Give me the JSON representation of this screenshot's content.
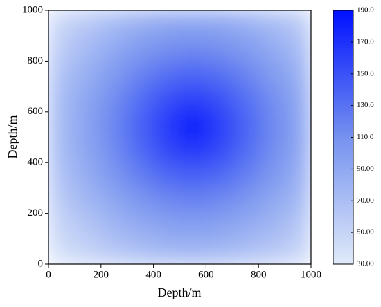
{
  "chart_data": {
    "type": "heatmap",
    "xlabel": "Depth/m",
    "ylabel": "Depth/m",
    "xlim": [
      0,
      1000
    ],
    "ylim": [
      0,
      1000
    ],
    "xticks": [
      0,
      200,
      400,
      600,
      800,
      1000
    ],
    "yticks": [
      0,
      200,
      400,
      600,
      800,
      1000
    ],
    "x": [
      50,
      150,
      250,
      350,
      450,
      550,
      650,
      750,
      850,
      950
    ],
    "y": [
      50,
      150,
      250,
      350,
      450,
      550,
      650,
      750,
      850,
      950
    ],
    "values": [
      [
        41,
        51,
        61,
        69,
        75,
        77,
        75,
        69,
        61,
        51
      ],
      [
        51,
        63,
        77,
        87,
        95,
        97,
        95,
        87,
        77,
        63
      ],
      [
        60,
        76,
        91,
        105,
        115,
        119,
        115,
        105,
        91,
        76
      ],
      [
        68,
        86,
        105,
        122,
        136,
        142,
        136,
        122,
        105,
        86
      ],
      [
        73,
        93,
        114,
        135,
        156,
        167,
        156,
        135,
        114,
        93
      ],
      [
        75,
        95,
        117,
        140,
        164,
        187,
        164,
        140,
        117,
        95
      ],
      [
        73,
        92,
        113,
        133,
        152,
        162,
        152,
        133,
        113,
        92
      ],
      [
        67,
        85,
        102,
        119,
        132,
        138,
        132,
        119,
        102,
        85
      ],
      [
        58,
        74,
        89,
        102,
        111,
        115,
        111,
        102,
        89,
        74
      ],
      [
        49,
        61,
        73,
        84,
        91,
        93,
        91,
        84,
        73,
        61
      ]
    ],
    "colormap": [
      "#e0eaf9",
      "#7592ef",
      "#0010ff"
    ],
    "clim": [
      30,
      190
    ],
    "cticks": [
      {
        "value": 30,
        "label": "30.00"
      },
      {
        "value": 50,
        "label": "50.00"
      },
      {
        "value": 70,
        "label": "70.00"
      },
      {
        "value": 90,
        "label": "90.00"
      },
      {
        "value": 110,
        "label": "110.0"
      },
      {
        "value": 130,
        "label": "130.0"
      },
      {
        "value": 150,
        "label": "150.0"
      },
      {
        "value": 170,
        "label": "170.0"
      },
      {
        "value": 190,
        "label": "190.0"
      }
    ]
  }
}
